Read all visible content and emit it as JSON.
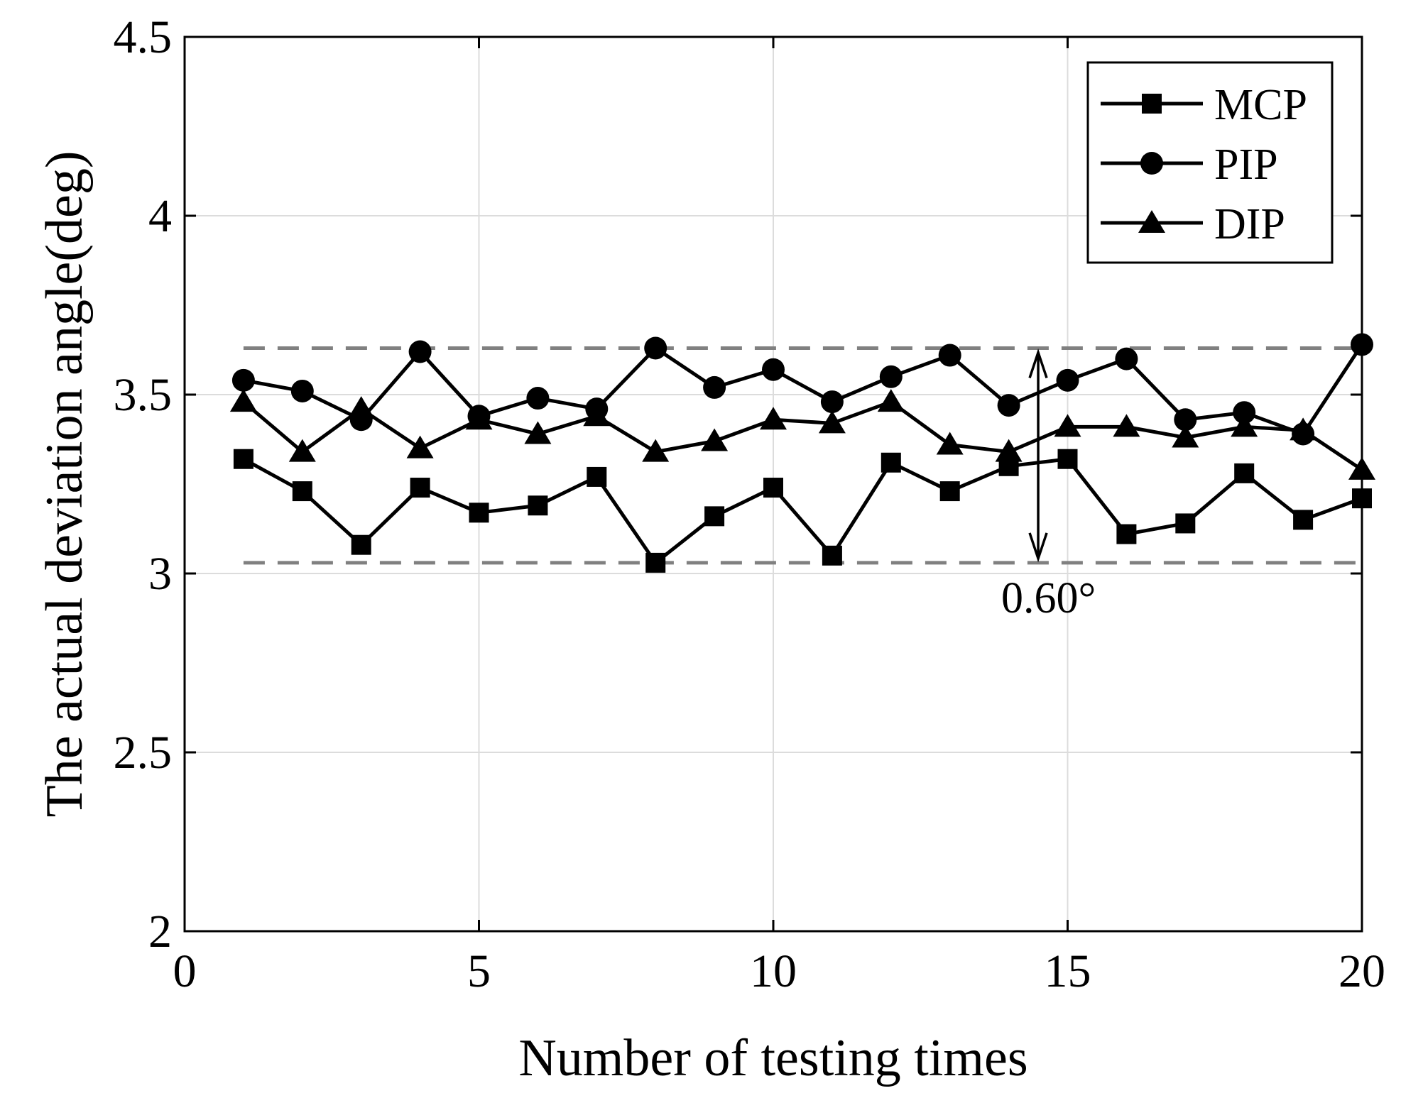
{
  "chart_data": {
    "type": "line",
    "xlabel": "Number of testing times",
    "ylabel": "The actual deviation angle(deg)",
    "xlim": [
      0,
      20
    ],
    "ylim": [
      2,
      4.5
    ],
    "xticks": [
      0,
      5,
      10,
      15,
      20
    ],
    "yticks": [
      2,
      2.5,
      3,
      3.5,
      4,
      4.5
    ],
    "xtick_labels": [
      "0",
      "5",
      "10",
      "15",
      "20"
    ],
    "ytick_labels": [
      "2",
      "2.5",
      "3",
      "3.5",
      "4",
      "4.5"
    ],
    "grid": true,
    "legend_position": "top-right",
    "x": [
      1,
      2,
      3,
      4,
      5,
      6,
      7,
      8,
      9,
      10,
      11,
      12,
      13,
      14,
      15,
      16,
      17,
      18,
      19,
      20
    ],
    "series": [
      {
        "name": "MCP",
        "marker": "square",
        "values": [
          3.32,
          3.23,
          3.08,
          3.24,
          3.17,
          3.19,
          3.27,
          3.03,
          3.16,
          3.24,
          3.05,
          3.31,
          3.23,
          3.3,
          3.32,
          3.11,
          3.14,
          3.28,
          3.15,
          3.21
        ]
      },
      {
        "name": "PIP",
        "marker": "circle",
        "values": [
          3.54,
          3.51,
          3.43,
          3.62,
          3.44,
          3.49,
          3.46,
          3.63,
          3.52,
          3.57,
          3.48,
          3.55,
          3.61,
          3.47,
          3.54,
          3.6,
          3.43,
          3.45,
          3.39,
          3.64
        ]
      },
      {
        "name": "DIP",
        "marker": "triangle",
        "values": [
          3.48,
          3.34,
          3.46,
          3.35,
          3.43,
          3.39,
          3.44,
          3.34,
          3.37,
          3.43,
          3.42,
          3.48,
          3.36,
          3.34,
          3.41,
          3.41,
          3.38,
          3.41,
          3.4,
          3.29
        ]
      }
    ],
    "reference_lines": [
      3.03,
      3.63
    ],
    "annotation": {
      "text": "0.60°",
      "x": 14.5,
      "y_from": 3.03,
      "y_to": 3.63
    },
    "colors": {
      "series": "#000000",
      "reference_line": "#808080",
      "grid": "#dcdcdc",
      "axes": "#000000"
    }
  }
}
